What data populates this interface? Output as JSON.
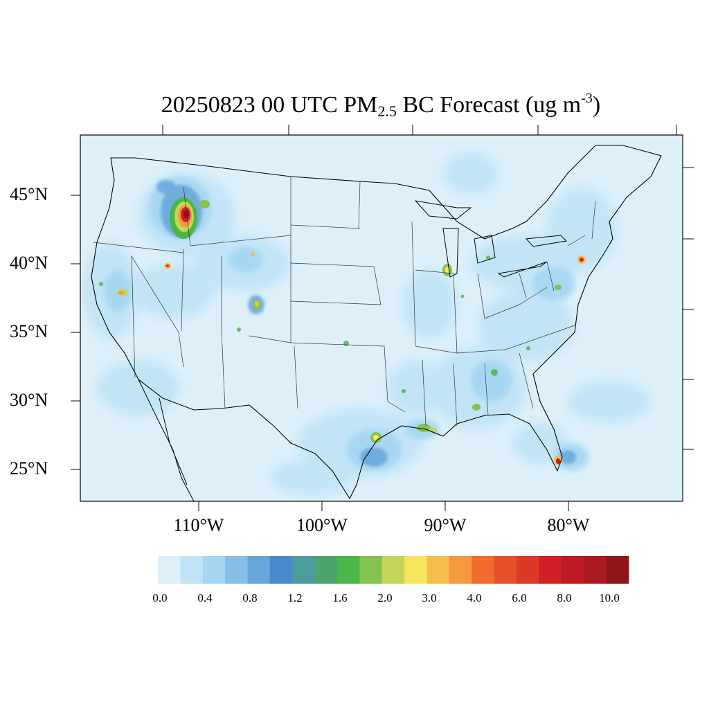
{
  "title": {
    "prefix": "20250823 00 UTC PM",
    "sub": "2.5",
    "mid": " BC Forecast (ug m",
    "sup": "-3",
    "end": ")"
  },
  "lat_labels": [
    "45°N",
    "40°N",
    "35°N",
    "30°N",
    "25°N"
  ],
  "lon_labels": [
    "110°W",
    "100°W",
    "90°W",
    "80°W"
  ],
  "colorbar": {
    "labels": [
      "0.0",
      "0.4",
      "0.8",
      "1.2",
      "1.6",
      "2.0",
      "3.0",
      "4.0",
      "6.0",
      "8.0",
      "10.0"
    ],
    "colors": [
      "#ddf0fa",
      "#c0e3f6",
      "#a4d6f2",
      "#86bfe6",
      "#66a6d9",
      "#4a89cc",
      "#4a9d9c",
      "#49a56b",
      "#4cb648",
      "#84c34e",
      "#c4d559",
      "#f7e55c",
      "#f8bc4b",
      "#f69840",
      "#f26a2e",
      "#e6512a",
      "#dc3a27",
      "#d21f26",
      "#bd1a24",
      "#a9191f",
      "#8e1518"
    ]
  },
  "map": {
    "background_color": "#ddf0fa",
    "region": "Contiguous United States",
    "hotspots": [
      {
        "name": "idaho-wyoming-fire",
        "level": 10.0
      },
      {
        "name": "utah-nevada",
        "level": 3.0
      },
      {
        "name": "northern-california",
        "level": 4.0
      },
      {
        "name": "colorado",
        "level": 3.0
      },
      {
        "name": "houston",
        "level": 3.0
      },
      {
        "name": "chicago",
        "level": 3.0
      },
      {
        "name": "new-york",
        "level": 6.0
      },
      {
        "name": "south-florida",
        "level": 8.0
      }
    ]
  }
}
